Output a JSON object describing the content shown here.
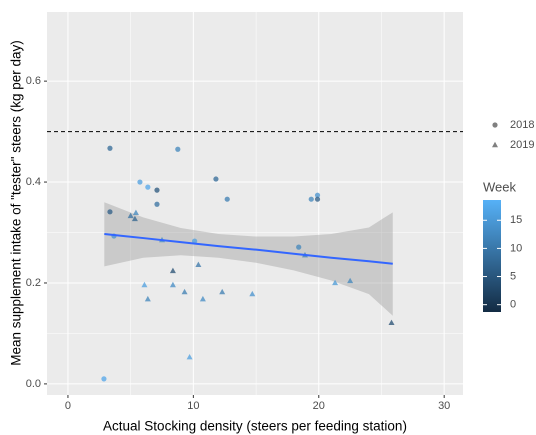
{
  "chart_data": {
    "type": "scatter",
    "x_label": "Actual Stocking density (steers per feeding station)",
    "y_label": "Mean supplement intake of \"tester\" steers (kg per day)",
    "xlim": [
      -1.67,
      31.5
    ],
    "ylim": [
      -0.022,
      0.737
    ],
    "xticks": [
      0,
      10,
      20,
      30
    ],
    "yticks": [
      {
        "value": 0,
        "label": "0.0"
      },
      {
        "value": 0.2,
        "label": "0.2"
      },
      {
        "value": 0.4,
        "label": "0.4"
      },
      {
        "value": 0.6,
        "label": "0.6"
      }
    ],
    "grid": true,
    "hline": 0.5,
    "series": [
      {
        "name": "2018",
        "shape": "circle",
        "x": [
          3.35,
          3.35,
          5.74,
          6.37,
          7.1,
          7.1,
          8.76,
          11.8,
          12.7,
          18.4,
          19.4,
          19.9,
          19.9,
          2.87,
          3.67,
          10.1
        ],
        "y": [
          0.341,
          0.467,
          0.4,
          0.39,
          0.384,
          0.356,
          0.465,
          0.406,
          0.366,
          0.271,
          0.366,
          0.374,
          0.366,
          0.01,
          0.293,
          0.283
        ],
        "week": [
          6,
          8,
          16,
          17,
          5,
          9,
          12,
          8,
          11,
          12,
          12,
          14,
          6,
          17,
          14,
          16
        ]
      },
      {
        "name": "2019",
        "shape": "triangle",
        "x": [
          5.0,
          5.34,
          5.42,
          7.5,
          6.1,
          6.37,
          8.37,
          8.37,
          9.3,
          9.7,
          10.4,
          10.76,
          12.3,
          14.7,
          18.9,
          21.3,
          22.5,
          25.8
        ],
        "y": [
          0.333,
          0.327,
          0.339,
          0.285,
          0.196,
          0.168,
          0.224,
          0.196,
          0.182,
          0.053,
          0.236,
          0.168,
          0.182,
          0.178,
          0.255,
          0.2,
          0.204,
          0.121
        ],
        "week": [
          9,
          7,
          12,
          13,
          16,
          12,
          4,
          13,
          11,
          16,
          10,
          13,
          11,
          14,
          11,
          15,
          12,
          4
        ]
      }
    ],
    "fit": {
      "color": "#3366ff",
      "x": [
        2.9,
        6,
        9,
        12,
        15,
        18,
        21,
        24,
        25.9
      ],
      "y": [
        0.297,
        0.289,
        0.281,
        0.273,
        0.266,
        0.258,
        0.25,
        0.243,
        0.238
      ],
      "lower": [
        0.233,
        0.25,
        0.255,
        0.25,
        0.24,
        0.225,
        0.205,
        0.178,
        0.135
      ],
      "upper": [
        0.36,
        0.33,
        0.309,
        0.297,
        0.292,
        0.292,
        0.297,
        0.31,
        0.34
      ]
    },
    "color_scale": {
      "title": "Week",
      "lim": [
        -1.3,
        18.6
      ],
      "ticks": [
        0,
        5,
        10,
        15
      ],
      "low": "#132b43",
      "high": "#56b1f7"
    }
  }
}
